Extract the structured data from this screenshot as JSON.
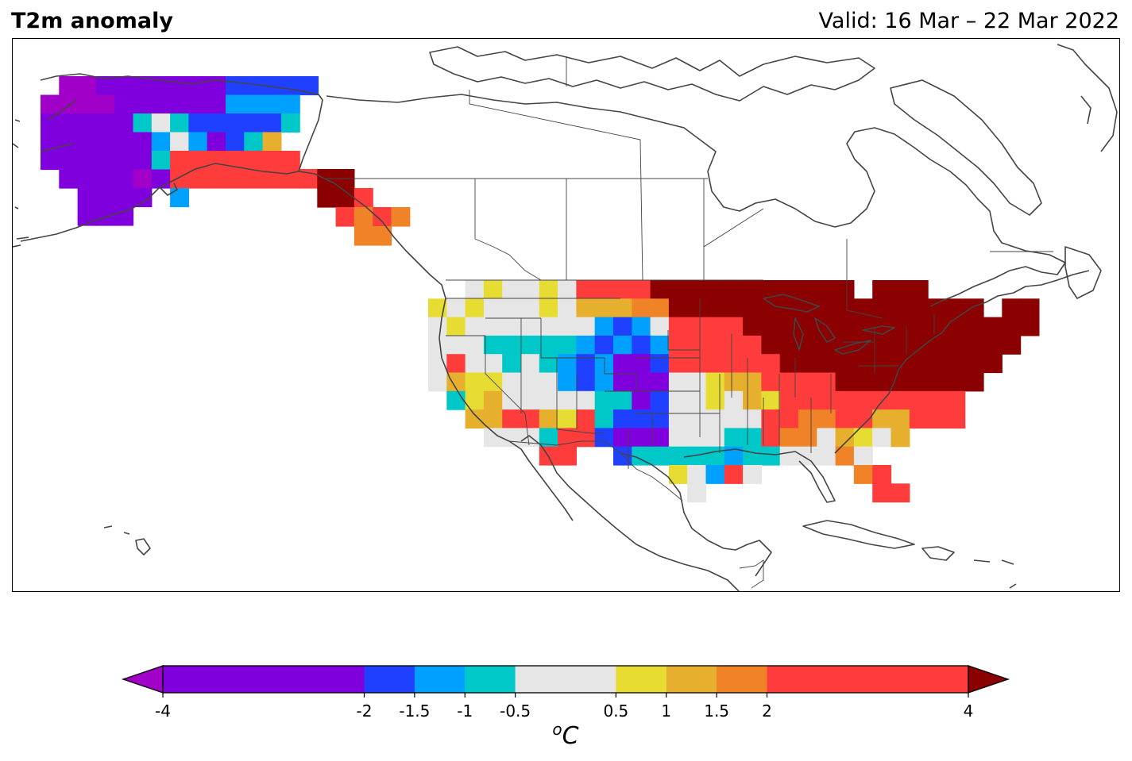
{
  "header": {
    "title": "T2m anomaly",
    "valid": "Valid: 16 Mar – 22 Mar 2022"
  },
  "map": {
    "region": "North America",
    "grid_cells_note_free": true
  },
  "colorbar": {
    "unit_base": "C",
    "unit_sup": "o",
    "extend": "both",
    "bounds": [
      -4,
      -2,
      -1.5,
      -1,
      -0.5,
      0.5,
      1,
      1.5,
      2,
      4
    ],
    "tick_labels": [
      "-4",
      "-2",
      "-1.5",
      "-1",
      "-0.5",
      "0.5",
      "1",
      "1.5",
      "2",
      "4"
    ],
    "colors": [
      "#7f00dd",
      "#2040ff",
      "#00a0ff",
      "#00c8c8",
      "#e6e6e6",
      "#e6dc32",
      "#e6af2d",
      "#f08228",
      "#ff3c3c"
    ],
    "under_color": "#a000c8",
    "over_color": "#8b0000"
  },
  "palette": {
    "P": "#7f00dd",
    "M": "#a000c8",
    "B": "#2040ff",
    "L": "#00a0ff",
    "C": "#00c8c8",
    "G": "#e6e6e6",
    "Y": "#e6dc32",
    "A": "#e6af2d",
    "O": "#f08228",
    "R": "#ff3c3c",
    "D": "#8b0000"
  }
}
